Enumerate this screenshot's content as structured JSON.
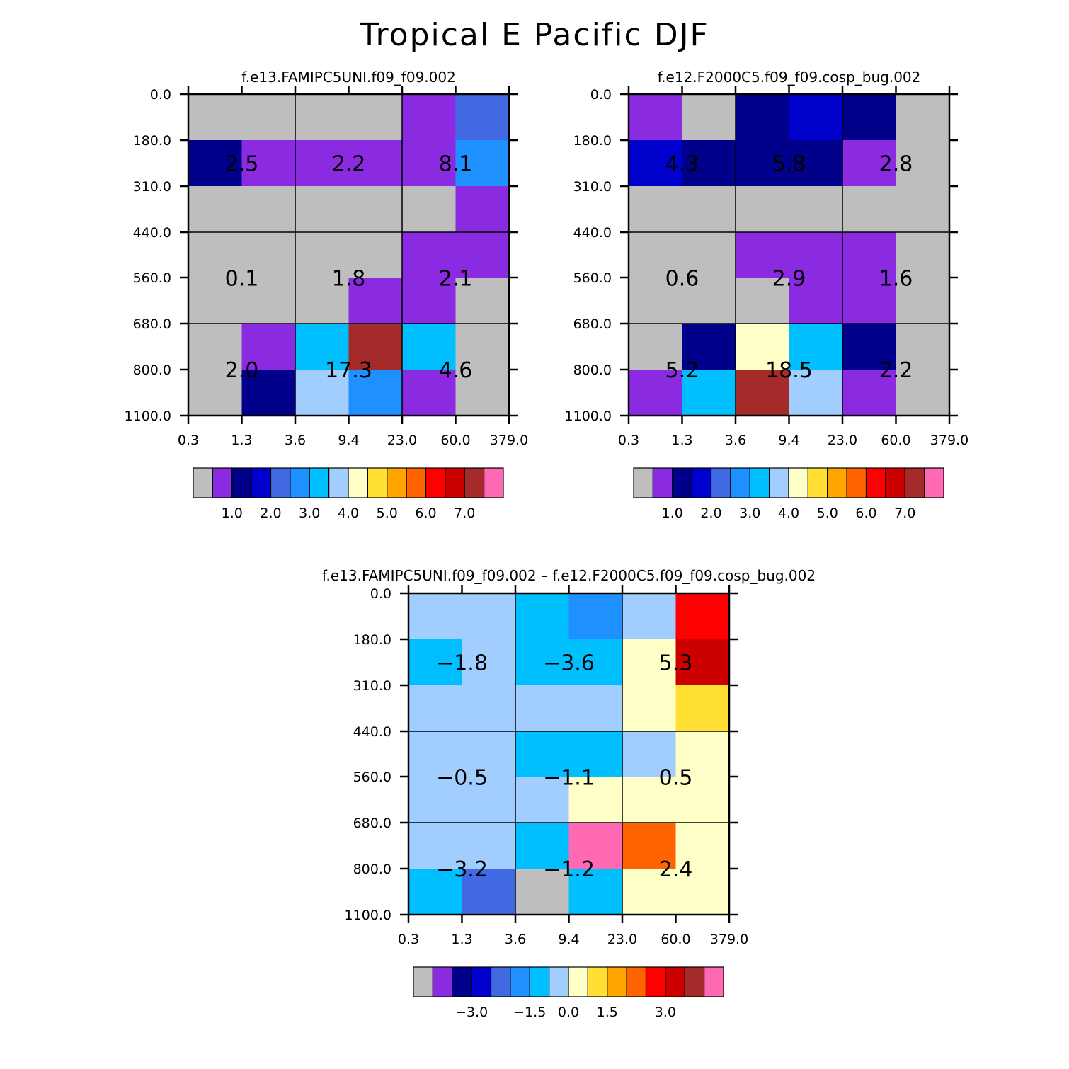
{
  "title": "Tropical E Pacific DJF",
  "chart_data": [
    {
      "type": "heatmap",
      "title": "f.e13.FAMIPC5UNI.f09_f09.002",
      "x_tick_labels": [
        "0.3",
        "1.3",
        "3.6",
        "9.4",
        "23.0",
        "60.0",
        "379.0"
      ],
      "y_tick_labels": [
        "0.0",
        "180.0",
        "310.0",
        "440.0",
        "560.0",
        "680.0",
        "800.0",
        "1100.0"
      ],
      "cell_colors": [
        [
          "#bebebe",
          "#bebebe",
          "#bebebe",
          "#bebebe",
          "#8a2be2",
          "#4169e1"
        ],
        [
          "#00008b",
          "#8a2be2",
          "#8a2be2",
          "#8a2be2",
          "#8a2be2",
          "#1e90ff"
        ],
        [
          "#bebebe",
          "#bebebe",
          "#bebebe",
          "#bebebe",
          "#bebebe",
          "#8a2be2"
        ],
        [
          "#bebebe",
          "#bebebe",
          "#bebebe",
          "#bebebe",
          "#8a2be2",
          "#8a2be2"
        ],
        [
          "#bebebe",
          "#bebebe",
          "#bebebe",
          "#8a2be2",
          "#8a2be2",
          "#bebebe"
        ],
        [
          "#bebebe",
          "#8a2be2",
          "#00bfff",
          "#a52a2a",
          "#00bfff",
          "#bebebe"
        ],
        [
          "#bebebe",
          "#00008b",
          "#a2cdff",
          "#1e90ff",
          "#8a2be2",
          "#bebebe"
        ]
      ],
      "group_labels": [
        [
          "2.5",
          "2.2",
          "8.1"
        ],
        [
          "0.1",
          "1.8",
          "2.1"
        ],
        [
          "2.0",
          "17.3",
          "4.6"
        ]
      ],
      "colorbar": {
        "colors": [
          "#bebebe",
          "#8a2be2",
          "#00008b",
          "#0000cd",
          "#4169e1",
          "#1e90ff",
          "#00bfff",
          "#a2cdff",
          "#ffffc8",
          "#ffe033",
          "#ffa500",
          "#ff6400",
          "#ff0000",
          "#cd0000",
          "#a52a2a",
          "#ff69b4"
        ],
        "labels": [
          "1.0",
          "2.0",
          "3.0",
          "4.0",
          "5.0",
          "6.0",
          "7.0"
        ]
      }
    },
    {
      "type": "heatmap",
      "title": "f.e12.F2000C5.f09_f09.cosp_bug.002",
      "x_tick_labels": [
        "0.3",
        "1.3",
        "3.6",
        "9.4",
        "23.0",
        "60.0",
        "379.0"
      ],
      "y_tick_labels": [
        "0.0",
        "180.0",
        "310.0",
        "440.0",
        "560.0",
        "680.0",
        "800.0",
        "1100.0"
      ],
      "cell_colors": [
        [
          "#8a2be2",
          "#bebebe",
          "#00008b",
          "#0000cd",
          "#00008b",
          "#bebebe"
        ],
        [
          "#0000cd",
          "#00008b",
          "#00008b",
          "#00008b",
          "#8a2be2",
          "#bebebe"
        ],
        [
          "#bebebe",
          "#bebebe",
          "#bebebe",
          "#bebebe",
          "#bebebe",
          "#bebebe"
        ],
        [
          "#bebebe",
          "#bebebe",
          "#8a2be2",
          "#8a2be2",
          "#8a2be2",
          "#bebebe"
        ],
        [
          "#bebebe",
          "#bebebe",
          "#bebebe",
          "#8a2be2",
          "#8a2be2",
          "#bebebe"
        ],
        [
          "#bebebe",
          "#00008b",
          "#ffffc8",
          "#00bfff",
          "#00008b",
          "#bebebe"
        ],
        [
          "#8a2be2",
          "#00bfff",
          "#a52a2a",
          "#a2cdff",
          "#8a2be2",
          "#bebebe"
        ]
      ],
      "group_labels": [
        [
          "4.3",
          "5.8",
          "2.8"
        ],
        [
          "0.6",
          "2.9",
          "1.6"
        ],
        [
          "5.2",
          "18.5",
          "2.2"
        ]
      ],
      "colorbar": {
        "colors": [
          "#bebebe",
          "#8a2be2",
          "#00008b",
          "#0000cd",
          "#4169e1",
          "#1e90ff",
          "#00bfff",
          "#a2cdff",
          "#ffffc8",
          "#ffe033",
          "#ffa500",
          "#ff6400",
          "#ff0000",
          "#cd0000",
          "#a52a2a",
          "#ff69b4"
        ],
        "labels": [
          "1.0",
          "2.0",
          "3.0",
          "4.0",
          "5.0",
          "6.0",
          "7.0"
        ]
      }
    },
    {
      "type": "heatmap",
      "title": "f.e13.FAMIPC5UNI.f09_f09.002 – f.e12.F2000C5.f09_f09.cosp_bug.002",
      "x_tick_labels": [
        "0.3",
        "1.3",
        "3.6",
        "9.4",
        "23.0",
        "60.0",
        "379.0"
      ],
      "y_tick_labels": [
        "0.0",
        "180.0",
        "310.0",
        "440.0",
        "560.0",
        "680.0",
        "800.0",
        "1100.0"
      ],
      "cell_colors": [
        [
          "#a2cdff",
          "#a2cdff",
          "#00bfff",
          "#1e90ff",
          "#a2cdff",
          "#ff0000"
        ],
        [
          "#00bfff",
          "#a2cdff",
          "#00bfff",
          "#00bfff",
          "#ffffc8",
          "#cd0000"
        ],
        [
          "#a2cdff",
          "#a2cdff",
          "#a2cdff",
          "#a2cdff",
          "#ffffc8",
          "#ffe033"
        ],
        [
          "#a2cdff",
          "#a2cdff",
          "#00bfff",
          "#00bfff",
          "#a2cdff",
          "#ffffc8"
        ],
        [
          "#a2cdff",
          "#a2cdff",
          "#a2cdff",
          "#ffffc8",
          "#ffffc8",
          "#ffffc8"
        ],
        [
          "#a2cdff",
          "#a2cdff",
          "#00bfff",
          "#ff69b4",
          "#ff6400",
          "#ffffc8"
        ],
        [
          "#00bfff",
          "#4169e1",
          "#bebebe",
          "#00bfff",
          "#ffffc8",
          "#ffffc8"
        ]
      ],
      "group_labels": [
        [
          "−1.8",
          "−3.6",
          "5.3"
        ],
        [
          "−0.5",
          "−1.1",
          "0.5"
        ],
        [
          "−3.2",
          "−1.2",
          "2.4"
        ]
      ],
      "colorbar": {
        "colors": [
          "#bebebe",
          "#8a2be2",
          "#00008b",
          "#0000cd",
          "#4169e1",
          "#1e90ff",
          "#00bfff",
          "#a2cdff",
          "#ffffc8",
          "#ffe033",
          "#ffa500",
          "#ff6400",
          "#ff0000",
          "#cd0000",
          "#a52a2a",
          "#ff69b4"
        ],
        "labels": [
          "−3.0",
          "−1.5",
          "0.0",
          "1.5",
          "3.0"
        ]
      }
    }
  ]
}
